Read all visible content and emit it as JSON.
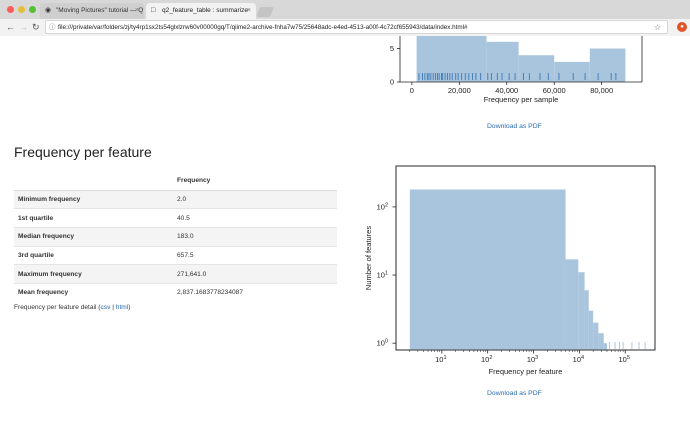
{
  "browser": {
    "tabs": [
      {
        "label": "\"Moving Pictures\" tutorial — Q",
        "icon": "qiime-icon"
      },
      {
        "label": "q2_feature_table : summarize",
        "icon": "page-icon"
      }
    ],
    "address": "file:///private/var/folders/zj/ty4rp1sx2ts54glxlzrw60v00000gq/T/qiime2-archive-fnha7w75/25648adc-e4ed-4513-a00f-4c72cf655943/data/index.html#"
  },
  "sample_plot": {
    "download_label": "Download as PDF",
    "chart_data": {
      "type": "bar",
      "xlabel": "Frequency per sample",
      "x_ticks": [
        "0",
        "20,000",
        "40,000",
        "60,000",
        "80,000"
      ],
      "y_ticks": [
        "0",
        "5"
      ],
      "xlim": [
        -5000,
        97000
      ],
      "ylim_visible": [
        0,
        8.4
      ],
      "bins": [
        {
          "x0": 2000,
          "x1": 31500,
          "count": 9
        },
        {
          "x0": 31500,
          "x1": 45000,
          "count": 6
        },
        {
          "x0": 45000,
          "x1": 60000,
          "count": 4
        },
        {
          "x0": 60000,
          "x1": 75000,
          "count": 3
        },
        {
          "x0": 75000,
          "x1": 90000,
          "count": 5
        }
      ],
      "rug": [
        3000,
        4500,
        5500,
        6500,
        7200,
        8000,
        9000,
        10000,
        10800,
        11500,
        12500,
        13000,
        14000,
        15000,
        16000,
        17000,
        18500,
        19500,
        21000,
        22500,
        24000,
        25500,
        27000,
        29000,
        32000,
        33500,
        36000,
        38000,
        41000,
        43500,
        47000,
        49500,
        54000,
        57500,
        62000,
        68000,
        73000,
        78500,
        84000,
        86000
      ]
    }
  },
  "feature_section": {
    "title": "Frequency per feature",
    "table": {
      "column_header": "Frequency",
      "rows": [
        {
          "label": "Minimum frequency",
          "value": "2.0"
        },
        {
          "label": "1st quartile",
          "value": "40.5"
        },
        {
          "label": "Median frequency",
          "value": "183.0"
        },
        {
          "label": "3rd quartile",
          "value": "657.5"
        },
        {
          "label": "Maximum frequency",
          "value": "271,641.0"
        },
        {
          "label": "Mean frequency",
          "value": "2,837.1683778234087"
        }
      ]
    },
    "detail_text": "Frequency per feature detail (",
    "detail_csv": "csv",
    "detail_sep": " | ",
    "detail_html": "html",
    "detail_close": ")"
  },
  "feature_plot": {
    "download_label": "Download as PDF",
    "chart_data": {
      "type": "bar",
      "log_x": true,
      "log_y": true,
      "xlabel": "Frequency per feature",
      "ylabel": "Number of features",
      "x_ticks": [
        {
          "exp": 1
        },
        {
          "exp": 2
        },
        {
          "exp": 3
        },
        {
          "exp": 4
        },
        {
          "exp": 5
        }
      ],
      "y_ticks": [
        {
          "exp": 0
        },
        {
          "exp": 1
        },
        {
          "exp": 2
        }
      ],
      "xlim_log10": [
        0.0,
        5.65
      ],
      "ylim_log10": [
        -0.1,
        2.6
      ],
      "bins": [
        {
          "x0": 2,
          "x1": 5000,
          "count": 180
        },
        {
          "x0": 5000,
          "x1": 9500,
          "count": 17
        },
        {
          "x0": 9500,
          "x1": 13000,
          "count": 11
        },
        {
          "x0": 13000,
          "x1": 16000,
          "count": 6
        },
        {
          "x0": 16000,
          "x1": 20000,
          "count": 3
        },
        {
          "x0": 20000,
          "x1": 26000,
          "count": 2
        },
        {
          "x0": 26000,
          "x1": 34000,
          "count": 1.4
        },
        {
          "x0": 34000,
          "x1": 40000,
          "count": 1
        }
      ],
      "rug": [
        45000,
        60000,
        75000,
        90000,
        140000,
        200000,
        271641
      ]
    }
  }
}
